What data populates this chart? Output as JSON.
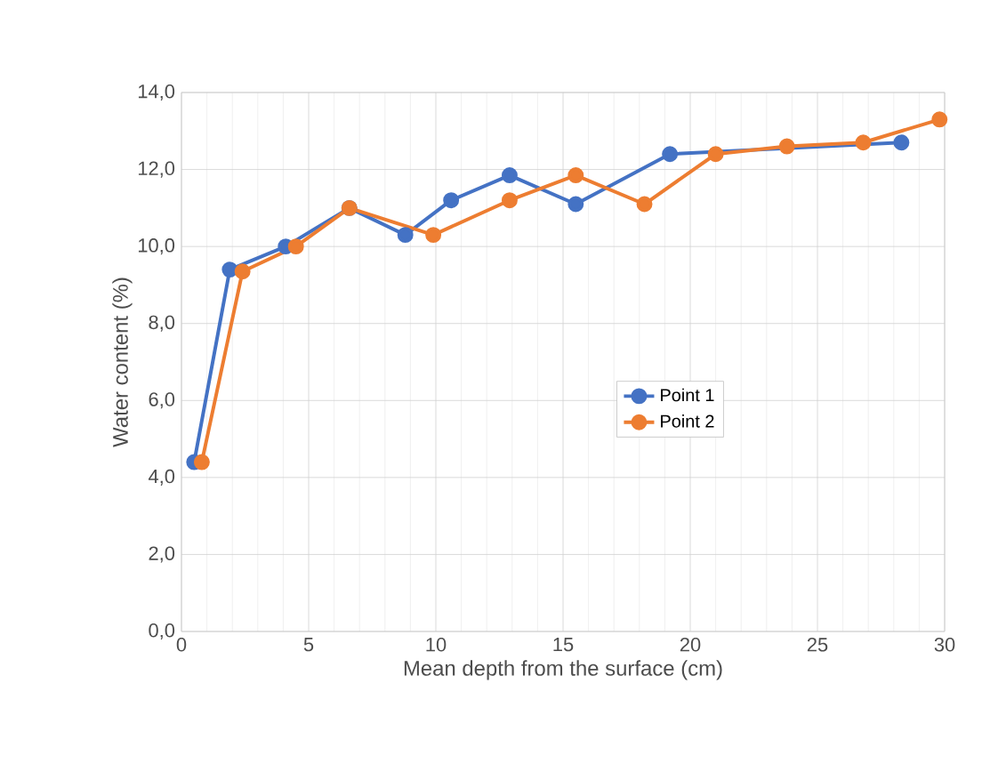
{
  "chart_data": {
    "type": "line",
    "xlabel": "Mean depth from the surface (cm)",
    "ylabel": "Water content (%)",
    "xlim": [
      0,
      30
    ],
    "xticks": [
      0,
      5,
      10,
      15,
      20,
      25,
      30
    ],
    "ylim": [
      0,
      14
    ],
    "yticks": [
      {
        "value": 0,
        "label": "0,0"
      },
      {
        "value": 2,
        "label": "2,0"
      },
      {
        "value": 4,
        "label": "4,0"
      },
      {
        "value": 6,
        "label": "6,0"
      },
      {
        "value": 8,
        "label": "8,0"
      },
      {
        "value": 10,
        "label": "10,0"
      },
      {
        "value": 12,
        "label": "12,0"
      },
      {
        "value": 14,
        "label": "14,0"
      }
    ],
    "grid": true,
    "legend": "right",
    "marker": "circle",
    "line_style": "solid",
    "series": [
      {
        "name": "Point 1",
        "color": "#4472c4",
        "x": [
          0.5,
          1.9,
          4.1,
          6.6,
          8.8,
          10.6,
          12.9,
          15.5,
          19.2,
          21,
          23.8,
          26.8,
          28.3
        ],
        "values": [
          4.4,
          9.4,
          10.0,
          11.0,
          10.3,
          11.2,
          11.85,
          11.1,
          12.4,
          null,
          null,
          null,
          12.7
        ]
      },
      {
        "name": "Point 2",
        "color": "#ed7d31",
        "x": [
          0.8,
          2.4,
          4.5,
          6.6,
          9.9,
          12.9,
          15.5,
          18.2,
          21,
          23.8,
          26.8,
          29.8
        ],
        "values": [
          4.4,
          9.35,
          10.0,
          11.0,
          10.3,
          11.2,
          11.85,
          11.1,
          12.4,
          12.6,
          12.7,
          13.3
        ]
      }
    ]
  }
}
